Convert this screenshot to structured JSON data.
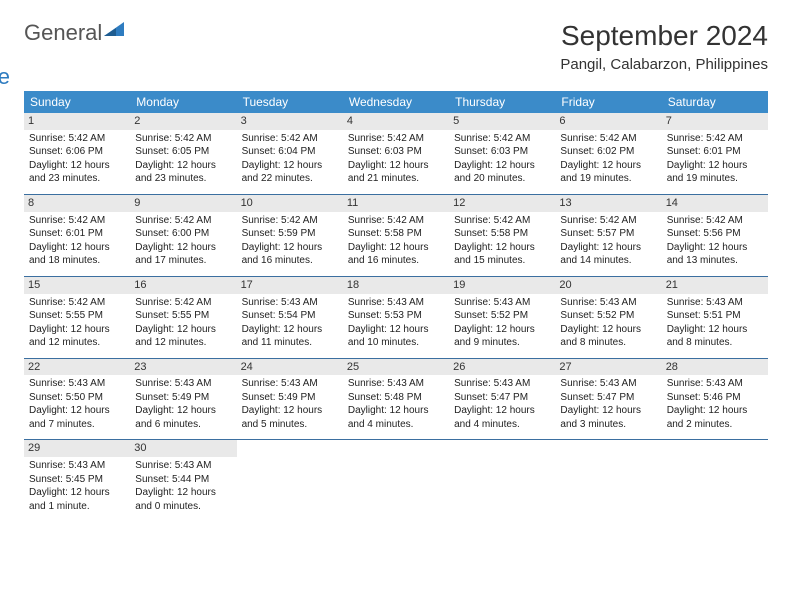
{
  "logo": {
    "word1": "General",
    "word2": "Blue"
  },
  "title": "September 2024",
  "location": "Pangil, Calabarzon, Philippines",
  "colors": {
    "header_bg": "#3b8bc9",
    "header_text": "#ffffff",
    "row_divider": "#3b6fa0",
    "daynum_bg": "#e9e9e9",
    "logo_accent": "#2e7cc0",
    "logo_gray": "#555555",
    "page_bg": "#ffffff"
  },
  "weekdays": [
    "Sunday",
    "Monday",
    "Tuesday",
    "Wednesday",
    "Thursday",
    "Friday",
    "Saturday"
  ],
  "days": [
    {
      "n": "1",
      "sr": "5:42 AM",
      "ss": "6:06 PM",
      "dl": "12 hours and 23 minutes."
    },
    {
      "n": "2",
      "sr": "5:42 AM",
      "ss": "6:05 PM",
      "dl": "12 hours and 23 minutes."
    },
    {
      "n": "3",
      "sr": "5:42 AM",
      "ss": "6:04 PM",
      "dl": "12 hours and 22 minutes."
    },
    {
      "n": "4",
      "sr": "5:42 AM",
      "ss": "6:03 PM",
      "dl": "12 hours and 21 minutes."
    },
    {
      "n": "5",
      "sr": "5:42 AM",
      "ss": "6:03 PM",
      "dl": "12 hours and 20 minutes."
    },
    {
      "n": "6",
      "sr": "5:42 AM",
      "ss": "6:02 PM",
      "dl": "12 hours and 19 minutes."
    },
    {
      "n": "7",
      "sr": "5:42 AM",
      "ss": "6:01 PM",
      "dl": "12 hours and 19 minutes."
    },
    {
      "n": "8",
      "sr": "5:42 AM",
      "ss": "6:01 PM",
      "dl": "12 hours and 18 minutes."
    },
    {
      "n": "9",
      "sr": "5:42 AM",
      "ss": "6:00 PM",
      "dl": "12 hours and 17 minutes."
    },
    {
      "n": "10",
      "sr": "5:42 AM",
      "ss": "5:59 PM",
      "dl": "12 hours and 16 minutes."
    },
    {
      "n": "11",
      "sr": "5:42 AM",
      "ss": "5:58 PM",
      "dl": "12 hours and 16 minutes."
    },
    {
      "n": "12",
      "sr": "5:42 AM",
      "ss": "5:58 PM",
      "dl": "12 hours and 15 minutes."
    },
    {
      "n": "13",
      "sr": "5:42 AM",
      "ss": "5:57 PM",
      "dl": "12 hours and 14 minutes."
    },
    {
      "n": "14",
      "sr": "5:42 AM",
      "ss": "5:56 PM",
      "dl": "12 hours and 13 minutes."
    },
    {
      "n": "15",
      "sr": "5:42 AM",
      "ss": "5:55 PM",
      "dl": "12 hours and 12 minutes."
    },
    {
      "n": "16",
      "sr": "5:42 AM",
      "ss": "5:55 PM",
      "dl": "12 hours and 12 minutes."
    },
    {
      "n": "17",
      "sr": "5:43 AM",
      "ss": "5:54 PM",
      "dl": "12 hours and 11 minutes."
    },
    {
      "n": "18",
      "sr": "5:43 AM",
      "ss": "5:53 PM",
      "dl": "12 hours and 10 minutes."
    },
    {
      "n": "19",
      "sr": "5:43 AM",
      "ss": "5:52 PM",
      "dl": "12 hours and 9 minutes."
    },
    {
      "n": "20",
      "sr": "5:43 AM",
      "ss": "5:52 PM",
      "dl": "12 hours and 8 minutes."
    },
    {
      "n": "21",
      "sr": "5:43 AM",
      "ss": "5:51 PM",
      "dl": "12 hours and 8 minutes."
    },
    {
      "n": "22",
      "sr": "5:43 AM",
      "ss": "5:50 PM",
      "dl": "12 hours and 7 minutes."
    },
    {
      "n": "23",
      "sr": "5:43 AM",
      "ss": "5:49 PM",
      "dl": "12 hours and 6 minutes."
    },
    {
      "n": "24",
      "sr": "5:43 AM",
      "ss": "5:49 PM",
      "dl": "12 hours and 5 minutes."
    },
    {
      "n": "25",
      "sr": "5:43 AM",
      "ss": "5:48 PM",
      "dl": "12 hours and 4 minutes."
    },
    {
      "n": "26",
      "sr": "5:43 AM",
      "ss": "5:47 PM",
      "dl": "12 hours and 4 minutes."
    },
    {
      "n": "27",
      "sr": "5:43 AM",
      "ss": "5:47 PM",
      "dl": "12 hours and 3 minutes."
    },
    {
      "n": "28",
      "sr": "5:43 AM",
      "ss": "5:46 PM",
      "dl": "12 hours and 2 minutes."
    },
    {
      "n": "29",
      "sr": "5:43 AM",
      "ss": "5:45 PM",
      "dl": "12 hours and 1 minute."
    },
    {
      "n": "30",
      "sr": "5:43 AM",
      "ss": "5:44 PM",
      "dl": "12 hours and 0 minutes."
    }
  ],
  "labels": {
    "sunrise": "Sunrise:",
    "sunset": "Sunset:",
    "daylight": "Daylight:"
  },
  "layout": {
    "start_weekday": 0,
    "cols": 7
  }
}
